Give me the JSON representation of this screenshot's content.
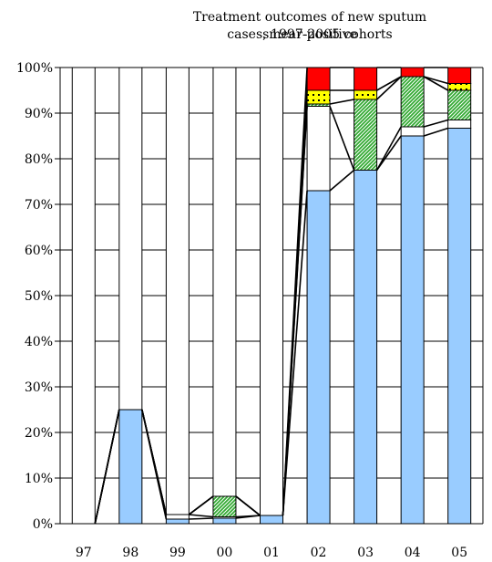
{
  "chart_data": {
    "type": "bar",
    "stacked": true,
    "title_lines": [
      "Treatment outcomes of new sputum smear-positive",
      "cases, 1997-2005 cohorts"
    ],
    "categories": [
      "97",
      "98",
      "99",
      "00",
      "01",
      "02",
      "03",
      "04",
      "05"
    ],
    "ylim": [
      0,
      100
    ],
    "yticks": [
      "0%",
      "10%",
      "20%",
      "30%",
      "40%",
      "50%",
      "60%",
      "70%",
      "80%",
      "90%",
      "100%"
    ],
    "grid": true,
    "legend": "none",
    "series": [
      {
        "color": "#99ccff",
        "pattern": "solid",
        "values": [
          0,
          25,
          1,
          1.2,
          1.8,
          73,
          77.5,
          85,
          86.7
        ]
      },
      {
        "color": "#ffffff",
        "pattern": "solid",
        "values": [
          0,
          0,
          1,
          0.3,
          0,
          18.5,
          0,
          2,
          1.8
        ]
      },
      {
        "color": "#33aa33",
        "pattern": "hatch",
        "values": [
          0,
          0,
          0,
          4.5,
          0,
          0.5,
          15.5,
          11,
          6.5
        ]
      },
      {
        "color": "#ffff00",
        "pattern": "dots",
        "values": [
          0,
          0,
          0,
          0,
          0,
          3,
          2,
          0,
          1.5
        ]
      },
      {
        "color": "#ff0000",
        "pattern": "solid",
        "values": [
          0,
          0,
          0,
          0,
          0,
          5,
          5,
          2,
          3.5
        ]
      },
      {
        "color": "#ffffff",
        "pattern": "solid",
        "values": [
          100,
          75,
          98,
          94,
          98.2,
          0,
          0,
          0,
          0
        ]
      }
    ]
  }
}
